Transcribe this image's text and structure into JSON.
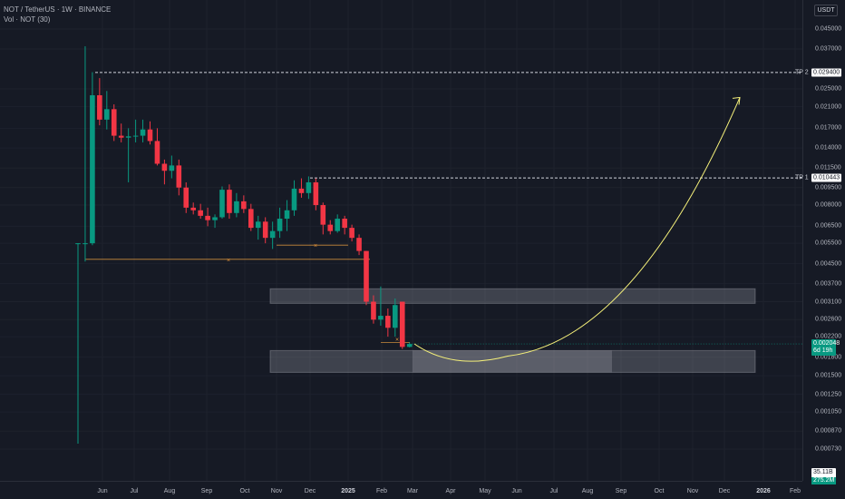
{
  "header": {
    "title": "NOT / TetherUS · 1W · BINANCE",
    "indicator": "Vol · NOT (30)"
  },
  "price_axis": {
    "currency_button": "USDT",
    "labels": [
      "0.045000",
      "0.037000",
      "0.025000",
      "0.021000",
      "0.017000",
      "0.014000",
      "0.011500",
      "0.009500",
      "0.008000",
      "0.006500",
      "0.005500",
      "0.004500",
      "0.003700",
      "0.003100",
      "0.002600",
      "0.002200",
      "0.001800",
      "0.001500",
      "0.001250",
      "0.001050",
      "0.000870",
      "0.000730"
    ],
    "tp2_label": "TP 2",
    "tp2_value": "0.029400",
    "tp1_label": "TP 1",
    "tp1_value": "0.010443",
    "current_price": "0.002048",
    "countdown": "6d 19h",
    "volume_value": "35.11B",
    "volume_sub": "275.2M"
  },
  "time_axis": {
    "labels": [
      {
        "text": "Jun",
        "year": false
      },
      {
        "text": "Jul",
        "year": false
      },
      {
        "text": "Aug",
        "year": false
      },
      {
        "text": "Sep",
        "year": false
      },
      {
        "text": "Oct",
        "year": false
      },
      {
        "text": "Nov",
        "year": false
      },
      {
        "text": "Dec",
        "year": false
      },
      {
        "text": "2025",
        "year": true
      },
      {
        "text": "Feb",
        "year": false
      },
      {
        "text": "Mar",
        "year": false
      },
      {
        "text": "Apr",
        "year": false
      },
      {
        "text": "May",
        "year": false
      },
      {
        "text": "Jun",
        "year": false
      },
      {
        "text": "Jul",
        "year": false
      },
      {
        "text": "Aug",
        "year": false
      },
      {
        "text": "Sep",
        "year": false
      },
      {
        "text": "Oct",
        "year": false
      },
      {
        "text": "Nov",
        "year": false
      },
      {
        "text": "Dec",
        "year": false
      },
      {
        "text": "2026",
        "year": true
      },
      {
        "text": "Feb",
        "year": false
      }
    ]
  },
  "colors": {
    "up": "#089981",
    "down": "#f23645",
    "projection": "#f5f07a",
    "zone": "#9598a1",
    "grid": "#1e222d",
    "background": "#161a25"
  },
  "chart_data": {
    "type": "candlestick",
    "scale": "log",
    "interval": "1W",
    "symbol": "NOTUSDT",
    "candles": [
      {
        "o": 0.0055,
        "h": 0.0055,
        "l": 0.00077,
        "c": 0.0055
      },
      {
        "o": 0.0055,
        "h": 0.038,
        "l": 0.0046,
        "c": 0.0055
      },
      {
        "o": 0.0055,
        "h": 0.0295,
        "l": 0.0054,
        "c": 0.0235
      },
      {
        "o": 0.0235,
        "h": 0.0278,
        "l": 0.0175,
        "c": 0.0185
      },
      {
        "o": 0.0185,
        "h": 0.0245,
        "l": 0.0168,
        "c": 0.0205
      },
      {
        "o": 0.0205,
        "h": 0.0215,
        "l": 0.015,
        "c": 0.0158
      },
      {
        "o": 0.0158,
        "h": 0.0178,
        "l": 0.0148,
        "c": 0.0155
      },
      {
        "o": 0.0155,
        "h": 0.017,
        "l": 0.01,
        "c": 0.0157
      },
      {
        "o": 0.0157,
        "h": 0.0185,
        "l": 0.0148,
        "c": 0.0158
      },
      {
        "o": 0.0158,
        "h": 0.0185,
        "l": 0.0148,
        "c": 0.0168
      },
      {
        "o": 0.0168,
        "h": 0.0182,
        "l": 0.0145,
        "c": 0.015
      },
      {
        "o": 0.015,
        "h": 0.017,
        "l": 0.0118,
        "c": 0.012
      },
      {
        "o": 0.012,
        "h": 0.0125,
        "l": 0.0098,
        "c": 0.0112
      },
      {
        "o": 0.0112,
        "h": 0.013,
        "l": 0.0104,
        "c": 0.0118
      },
      {
        "o": 0.0118,
        "h": 0.0125,
        "l": 0.0088,
        "c": 0.0095
      },
      {
        "o": 0.0095,
        "h": 0.01,
        "l": 0.0074,
        "c": 0.0078
      },
      {
        "o": 0.0078,
        "h": 0.0082,
        "l": 0.0073,
        "c": 0.0076
      },
      {
        "o": 0.0076,
        "h": 0.0081,
        "l": 0.007,
        "c": 0.0072
      },
      {
        "o": 0.0072,
        "h": 0.0078,
        "l": 0.0065,
        "c": 0.0069
      },
      {
        "o": 0.0069,
        "h": 0.0073,
        "l": 0.0064,
        "c": 0.0071
      },
      {
        "o": 0.0071,
        "h": 0.0096,
        "l": 0.007,
        "c": 0.0093
      },
      {
        "o": 0.0093,
        "h": 0.0098,
        "l": 0.007,
        "c": 0.0074
      },
      {
        "o": 0.0074,
        "h": 0.009,
        "l": 0.0071,
        "c": 0.0083
      },
      {
        "o": 0.0083,
        "h": 0.0088,
        "l": 0.0074,
        "c": 0.0077
      },
      {
        "o": 0.0077,
        "h": 0.0081,
        "l": 0.0062,
        "c": 0.0064
      },
      {
        "o": 0.0064,
        "h": 0.0072,
        "l": 0.0057,
        "c": 0.0068
      },
      {
        "o": 0.0068,
        "h": 0.0071,
        "l": 0.0055,
        "c": 0.0058
      },
      {
        "o": 0.0058,
        "h": 0.0068,
        "l": 0.0052,
        "c": 0.0062
      },
      {
        "o": 0.0062,
        "h": 0.0078,
        "l": 0.0058,
        "c": 0.007
      },
      {
        "o": 0.007,
        "h": 0.0084,
        "l": 0.0062,
        "c": 0.0076
      },
      {
        "o": 0.0076,
        "h": 0.0102,
        "l": 0.0072,
        "c": 0.0094
      },
      {
        "o": 0.0094,
        "h": 0.0104,
        "l": 0.0086,
        "c": 0.009
      },
      {
        "o": 0.009,
        "h": 0.0106,
        "l": 0.0085,
        "c": 0.01
      },
      {
        "o": 0.01,
        "h": 0.0104,
        "l": 0.0076,
        "c": 0.008
      },
      {
        "o": 0.008,
        "h": 0.0082,
        "l": 0.006,
        "c": 0.0066
      },
      {
        "o": 0.0066,
        "h": 0.0069,
        "l": 0.006,
        "c": 0.0062
      },
      {
        "o": 0.0062,
        "h": 0.0073,
        "l": 0.0061,
        "c": 0.007
      },
      {
        "o": 0.007,
        "h": 0.0072,
        "l": 0.006,
        "c": 0.0064
      },
      {
        "o": 0.0064,
        "h": 0.0066,
        "l": 0.0056,
        "c": 0.0058
      },
      {
        "o": 0.0058,
        "h": 0.006,
        "l": 0.0049,
        "c": 0.0051
      },
      {
        "o": 0.0051,
        "h": 0.0051,
        "l": 0.003,
        "c": 0.0031
      },
      {
        "o": 0.0031,
        "h": 0.0033,
        "l": 0.0025,
        "c": 0.0026
      },
      {
        "o": 0.0026,
        "h": 0.0036,
        "l": 0.00245,
        "c": 0.0027
      },
      {
        "o": 0.0027,
        "h": 0.0029,
        "l": 0.0022,
        "c": 0.0024
      },
      {
        "o": 0.0024,
        "h": 0.0032,
        "l": 0.0022,
        "c": 0.003
      },
      {
        "o": 0.0031,
        "h": 0.0031,
        "l": 0.00195,
        "c": 0.00199
      },
      {
        "o": 0.00199,
        "h": 0.00208,
        "l": 0.00198,
        "c": 0.002048
      }
    ],
    "levels": [
      {
        "name": "TP 2",
        "price": 0.0294
      },
      {
        "name": "TP 1",
        "price": 0.010443
      }
    ],
    "zones": [
      {
        "top": 0.00352,
        "bottom": 0.00305
      },
      {
        "top": 0.00192,
        "bottom": 0.00155
      }
    ],
    "projection": {
      "from_price": 0.00205,
      "bottom_price": 0.00185,
      "to_price": 0.023
    }
  }
}
